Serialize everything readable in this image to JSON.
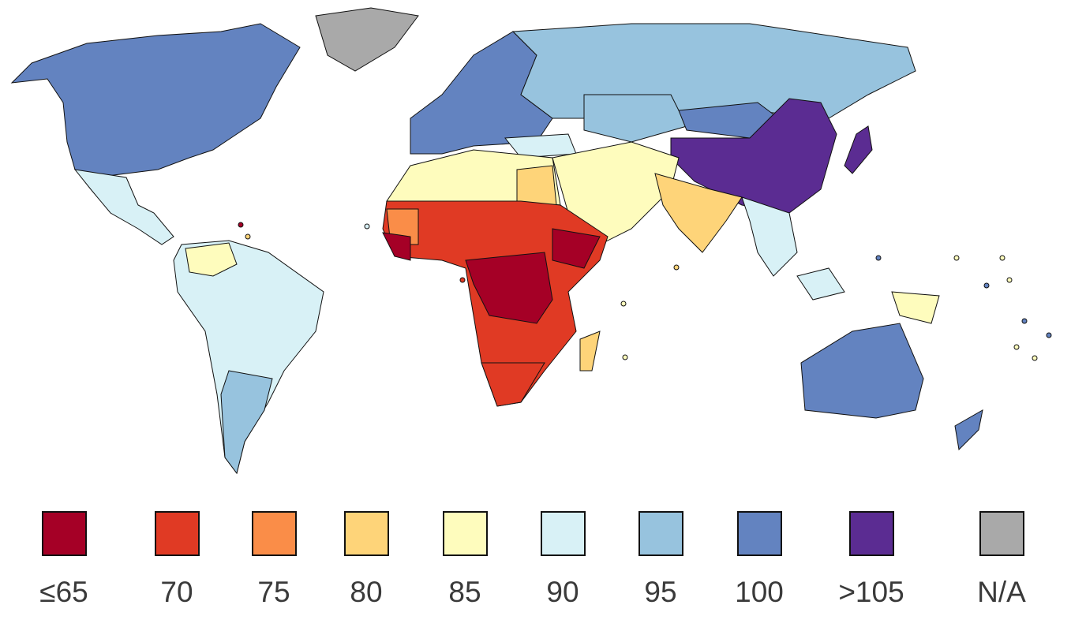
{
  "legend": [
    {
      "label": "≤65",
      "color": "#a50026"
    },
    {
      "label": "70",
      "color": "#e03a24"
    },
    {
      "label": "75",
      "color": "#fa8d48"
    },
    {
      "label": "80",
      "color": "#fed479"
    },
    {
      "label": "85",
      "color": "#fefcbd"
    },
    {
      "label": "90",
      "color": "#d8f1f6"
    },
    {
      "label": "95",
      "color": "#97c3de"
    },
    {
      "label": "100",
      "color": "#6383c0"
    },
    {
      "label": ">105",
      "color": "#5b2c92"
    },
    {
      "label": "N/A",
      "color": "#a9a9a9"
    }
  ]
}
